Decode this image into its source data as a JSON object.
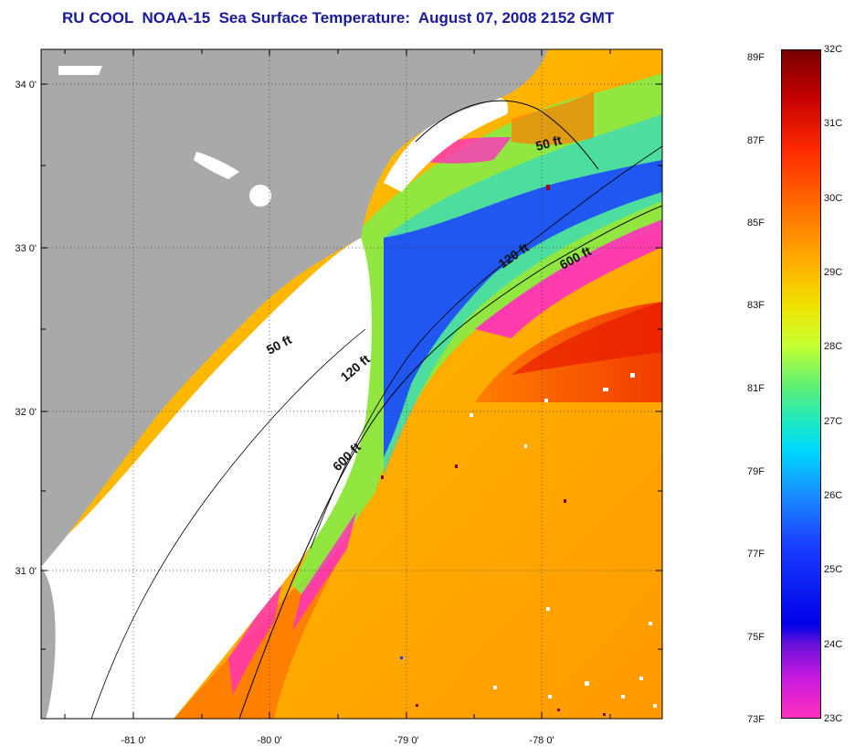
{
  "title": "RU COOL  NOAA-15  Sea Surface Temperature:  August 07, 2008 2152 GMT",
  "lat_ticks": [
    "34 0'",
    "33 0'",
    "32 0'",
    "31 0'"
  ],
  "lon_ticks": [
    "-81 0'",
    "-80 0'",
    "-79 0'",
    "-78 0'"
  ],
  "contours": [
    "50 ft",
    "120 ft",
    "600 ft"
  ],
  "colorbar": {
    "fahrenheit": [
      "89F",
      "87F",
      "85F",
      "83F",
      "81F",
      "79F",
      "77F",
      "75F",
      "73F"
    ],
    "celsius": [
      "32C",
      "31C",
      "30C",
      "29C",
      "28C",
      "27C",
      "26C",
      "25C",
      "24C",
      "23C"
    ]
  },
  "colors": {
    "title": "#1a1a9c",
    "land": "#a9a9a9",
    "cloud_mask": "#ffffff",
    "warm": "#ff6a00",
    "cool": "#1a40ff"
  }
}
